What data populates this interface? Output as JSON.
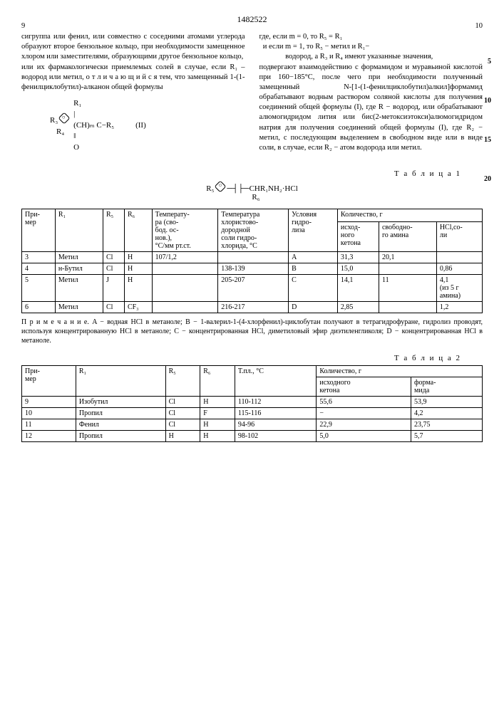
{
  "patent_number": "1482522",
  "page_left": "9",
  "page_right": "10",
  "left_column": "сигруппа или фенил, или совместно с соседними атомами углерода образуют второе бензольное кольцо, при необходимости замещенное хлором или заместителями, образующими другое бензольное кольцо,\nили их фармакологически приемлемых солей в случае, если R₁ – водород или метил, о т л и ч а ю щ и й с я тем, что замещенный 1-(1-фенилциклобутил)-алканон общей формулы",
  "formula_text": "R₁\n|\n(CH)ₘ C−R₅\n‖\nO",
  "formula_ring_left": "R₃",
  "formula_ring_bottom": "R₄",
  "formula_num": "(II)",
  "right_column": "где, если m = 0, то R₅ = R₁\n  и если m = 1, то R₅ − метил и R₁−\n              водород, а R₃ и R₄ имеют указанные значения,\nподвергают взаимодействию с формамидом и муравьиной кислотой при 160−185°С, после чего при необходимости полученный замещенный N-[1-(1-фенилциклобутил)алкил]формамид обрабатывают водным раствором соляной кислоты для получения соединений общей формулы (I), где R − водород, или обрабатывают алюмогидридом лития или бис(2-метоксиэтокси)алюмогидридом натрия для получения соединений общей формулы (I), где R₂ − метил, с последующим выделением в свободном виде или в виде соли, в случае, если R₂ − атом водорода или метил.",
  "line_refs": [
    "5",
    "10",
    "15",
    "20"
  ],
  "table1": {
    "title": "Т а б л и ц а  1",
    "chem_formula": "R₅⟨◯⟩−C(CHR₁NH₂·HCl)−R₆",
    "headers": [
      "При-\nмер",
      "R₁",
      "R₅",
      "R₆",
      "Температу-\nра (сво-\nбод. ос-\nнов.),\n°С/мм рт.ст.",
      "Температура\nхлористово-\nдородной\nсоли гидро-\nхлорида, °С",
      "Условия\nгидро-\nлиза",
      "Количество, г"
    ],
    "subheaders": [
      "исход-\nного\nкетона",
      "свободно-\nго амина",
      "HCl,со-\nли"
    ],
    "rows": [
      [
        "3",
        "Метил",
        "Cl",
        "H",
        "107/1,2",
        "",
        "A",
        "31,3",
        "20,1",
        ""
      ],
      [
        "4",
        "н-Бутил",
        "Cl",
        "H",
        "",
        "138-139",
        "B",
        "15,0",
        "",
        "0,86"
      ],
      [
        "5",
        "Метил",
        "J",
        "H",
        "",
        "205-207",
        "C",
        "14,1",
        "11",
        "4,1\n(из 5 г\nамина)"
      ],
      [
        "6",
        "Метил",
        "Cl",
        "CF₃",
        "",
        "216-217",
        "D",
        "2,85",
        "",
        "1,2"
      ]
    ],
    "note": "П р и м е ч а н и е. A − водная HCl в метаноле; B − 1-валерил-1-(4-хлорфенил)-циклобутан получают в тетрагидрофуране, гидролиз проводят, используя концентрированную HCl в метаноле; C − концентрированная HCl, диметиловый эфир диэтиленгликоля; D − концентрированная HCl в метаноле."
  },
  "table2": {
    "title": "Т а б л и ц а  2",
    "headers": [
      "При-\nмер",
      "R₁",
      "R₅",
      "R₆",
      "Т.пл., °С",
      "Количество, г"
    ],
    "subheaders": [
      "исходного\nкетона",
      "форма-\nмида"
    ],
    "rows": [
      [
        "9",
        "Изобутил",
        "Cl",
        "H",
        "110-112",
        "55,6",
        "53,9"
      ],
      [
        "10",
        "Пропил",
        "Cl",
        "F",
        "115-116",
        "−",
        "4,2"
      ],
      [
        "11",
        "Фенил",
        "Cl",
        "H",
        "94-96",
        "22,9",
        "23,75"
      ],
      [
        "12",
        "Пропил",
        "H",
        "H",
        "98-102",
        "5,0",
        "5,7"
      ]
    ]
  }
}
